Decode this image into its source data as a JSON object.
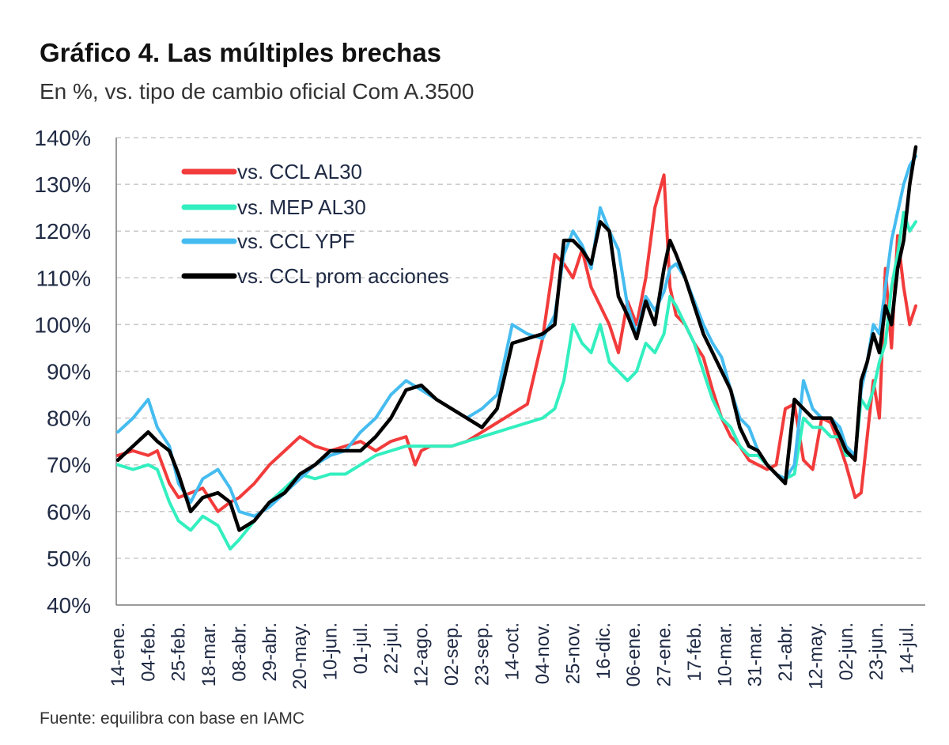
{
  "header": {
    "title": "Gráfico 4. Las múltiples brechas",
    "subtitle": "En %, vs. tipo de cambio oficial Com A.3500"
  },
  "footer": {
    "source": "Fuente: equilibra con base en IAMC"
  },
  "chart_data": {
    "type": "line",
    "title": "Gráfico 4. Las múltiples brechas",
    "subtitle": "En %, vs. tipo de cambio oficial Com A.3500",
    "xlabel": "",
    "ylabel": "",
    "ylim": [
      40,
      140
    ],
    "yticks": [
      40,
      50,
      60,
      70,
      80,
      90,
      100,
      110,
      120,
      130,
      140
    ],
    "ytick_labels": [
      "40%",
      "50%",
      "60%",
      "70%",
      "80%",
      "90%",
      "100%",
      "110%",
      "120%",
      "130%",
      "140%"
    ],
    "grid": "horizontal dashed",
    "legend_position": "top-left",
    "x_ticks": [
      "14-ene.",
      "04-feb.",
      "25-feb.",
      "18-mar.",
      "08-abr.",
      "29-abr.",
      "20-may.",
      "10-jun.",
      "01-jul.",
      "22-jul.",
      "12-ago.",
      "02-sep.",
      "23-sep.",
      "14-oct.",
      "04-nov.",
      "25-nov.",
      "16-dic.",
      "06-ene.",
      "27-ene.",
      "17-feb.",
      "10-mar.",
      "31-mar.",
      "21-abr.",
      "12-may.",
      "02-jun.",
      "23-jun.",
      "14-jul."
    ],
    "x_range": [
      0,
      26.3
    ],
    "series": [
      {
        "name": "vs. CCL AL30",
        "color": "#f23b3b",
        "x": [
          0,
          0.5,
          1,
          1.3,
          1.7,
          2.0,
          2.4,
          2.8,
          3.3,
          3.7,
          4.0,
          4.5,
          5.0,
          5.5,
          6.0,
          6.5,
          7.0,
          7.5,
          8.0,
          8.5,
          9.0,
          9.5,
          9.8,
          10.0,
          10.3,
          10.6,
          11.0,
          11.5,
          12.0,
          12.5,
          13.0,
          13.5,
          14.0,
          14.4,
          14.7,
          15.0,
          15.3,
          15.6,
          15.9,
          16.2,
          16.5,
          16.8,
          17.1,
          17.4,
          17.7,
          18.0,
          18.2,
          18.4,
          18.7,
          19.0,
          19.3,
          19.6,
          19.9,
          20.2,
          20.5,
          20.8,
          21.1,
          21.4,
          21.7,
          22.0,
          22.3,
          22.6,
          22.9,
          23.2,
          23.5,
          23.8,
          24.0,
          24.3,
          24.5,
          24.7,
          24.9,
          25.1,
          25.3,
          25.5,
          25.7,
          25.9,
          26.1,
          26.3
        ],
        "values": [
          72,
          73,
          72,
          73,
          66,
          63,
          64,
          65,
          60,
          62,
          63,
          66,
          70,
          73,
          76,
          74,
          73,
          74,
          75,
          73,
          75,
          76,
          70,
          73,
          74,
          74,
          74,
          75,
          77,
          79,
          81,
          83,
          97,
          115,
          113,
          110,
          116,
          108,
          104,
          100,
          94,
          105,
          100,
          110,
          125,
          132,
          108,
          102,
          100,
          96,
          93,
          86,
          80,
          76,
          74,
          71,
          70,
          69,
          70,
          82,
          83,
          71,
          69,
          80,
          79,
          74,
          70,
          63,
          64,
          76,
          88,
          80,
          112,
          95,
          119,
          108,
          100,
          104
        ]
      },
      {
        "name": "vs. MEP AL30",
        "color": "#33efbf",
        "x": [
          0,
          0.5,
          1,
          1.3,
          1.7,
          2.0,
          2.4,
          2.8,
          3.3,
          3.7,
          4.0,
          4.5,
          5.0,
          5.5,
          6.0,
          6.5,
          7.0,
          7.5,
          8.0,
          8.5,
          9.0,
          9.5,
          10.0,
          10.5,
          11.0,
          11.5,
          12.0,
          12.5,
          13.0,
          13.5,
          14.0,
          14.4,
          14.7,
          15.0,
          15.3,
          15.6,
          15.9,
          16.2,
          16.5,
          16.8,
          17.1,
          17.4,
          17.7,
          18.0,
          18.2,
          18.4,
          18.7,
          19.0,
          19.3,
          19.6,
          19.9,
          20.2,
          20.5,
          20.8,
          21.1,
          21.4,
          21.7,
          22.0,
          22.3,
          22.6,
          22.9,
          23.2,
          23.5,
          23.8,
          24.0,
          24.3,
          24.5,
          24.7,
          24.9,
          25.1,
          25.3,
          25.5,
          25.7,
          25.9,
          26.1,
          26.3
        ],
        "values": [
          70,
          69,
          70,
          69,
          62,
          58,
          56,
          59,
          57,
          52,
          54,
          58,
          62,
          65,
          68,
          67,
          68,
          68,
          70,
          72,
          73,
          74,
          74,
          74,
          74,
          75,
          76,
          77,
          78,
          79,
          80,
          82,
          88,
          100,
          96,
          94,
          100,
          92,
          90,
          88,
          90,
          96,
          94,
          98,
          106,
          104,
          100,
          96,
          90,
          84,
          80,
          78,
          74,
          72,
          72,
          70,
          68,
          67,
          68,
          80,
          78,
          78,
          76,
          76,
          72,
          72,
          84,
          82,
          86,
          92,
          96,
          108,
          115,
          124,
          120,
          122
        ]
      },
      {
        "name": "vs. CCL YPF",
        "color": "#45bcf0",
        "x": [
          0,
          0.5,
          1,
          1.3,
          1.7,
          2.0,
          2.4,
          2.8,
          3.3,
          3.7,
          4.0,
          4.5,
          5.0,
          5.5,
          6.0,
          6.5,
          7.0,
          7.5,
          8.0,
          8.5,
          9.0,
          9.5,
          10.0,
          10.5,
          11.0,
          11.5,
          12.0,
          12.5,
          13.0,
          13.5,
          14.0,
          14.4,
          14.7,
          15.0,
          15.3,
          15.6,
          15.9,
          16.2,
          16.5,
          16.8,
          17.1,
          17.4,
          17.7,
          18.0,
          18.2,
          18.4,
          18.7,
          19.0,
          19.3,
          19.6,
          19.9,
          20.2,
          20.5,
          20.8,
          21.1,
          21.4,
          21.7,
          22.0,
          22.3,
          22.6,
          22.9,
          23.2,
          23.5,
          23.8,
          24.0,
          24.3,
          24.5,
          24.7,
          24.9,
          25.1,
          25.3,
          25.5,
          25.7,
          25.9,
          26.1,
          26.3
        ],
        "values": [
          77,
          80,
          84,
          78,
          74,
          66,
          62,
          67,
          69,
          65,
          60,
          59,
          61,
          64,
          67,
          70,
          72,
          73,
          77,
          80,
          85,
          88,
          86,
          84,
          82,
          80,
          82,
          85,
          100,
          98,
          97,
          102,
          115,
          120,
          117,
          112,
          125,
          120,
          116,
          104,
          98,
          106,
          103,
          107,
          112,
          113,
          110,
          105,
          100,
          96,
          93,
          86,
          80,
          78,
          73,
          70,
          68,
          67,
          70,
          88,
          82,
          80,
          80,
          78,
          74,
          72,
          86,
          92,
          100,
          98,
          108,
          118,
          124,
          130,
          134,
          136
        ]
      },
      {
        "name": "vs. CCL prom acciones",
        "color": "#000000",
        "x": [
          0,
          0.5,
          1,
          1.3,
          1.7,
          2.0,
          2.4,
          2.8,
          3.3,
          3.7,
          4.0,
          4.5,
          5.0,
          5.5,
          6.0,
          6.5,
          7.0,
          7.5,
          8.0,
          8.5,
          9.0,
          9.5,
          10.0,
          10.5,
          11.0,
          11.5,
          12.0,
          12.5,
          13.0,
          13.5,
          14.0,
          14.4,
          14.7,
          15.0,
          15.3,
          15.6,
          15.9,
          16.2,
          16.5,
          16.8,
          17.1,
          17.4,
          17.7,
          18.0,
          18.2,
          18.4,
          18.7,
          19.0,
          19.3,
          19.6,
          19.9,
          20.2,
          20.5,
          20.8,
          21.1,
          21.4,
          21.7,
          22.0,
          22.3,
          22.6,
          22.9,
          23.2,
          23.5,
          23.8,
          24.0,
          24.3,
          24.5,
          24.7,
          24.9,
          25.1,
          25.3,
          25.5,
          25.7,
          25.9,
          26.1,
          26.3
        ],
        "values": [
          71,
          74,
          77,
          75,
          73,
          68,
          60,
          63,
          64,
          62,
          56,
          58,
          62,
          64,
          68,
          70,
          73,
          73,
          73,
          76,
          80,
          86,
          87,
          84,
          82,
          80,
          78,
          82,
          96,
          97,
          98,
          100,
          118,
          118,
          116,
          113,
          122,
          120,
          106,
          102,
          97,
          105,
          100,
          112,
          118,
          115,
          110,
          104,
          98,
          94,
          90,
          86,
          78,
          74,
          73,
          70,
          68,
          66,
          84,
          82,
          80,
          80,
          80,
          76,
          73,
          71,
          88,
          92,
          98,
          94,
          104,
          100,
          112,
          118,
          130,
          138
        ]
      }
    ]
  }
}
